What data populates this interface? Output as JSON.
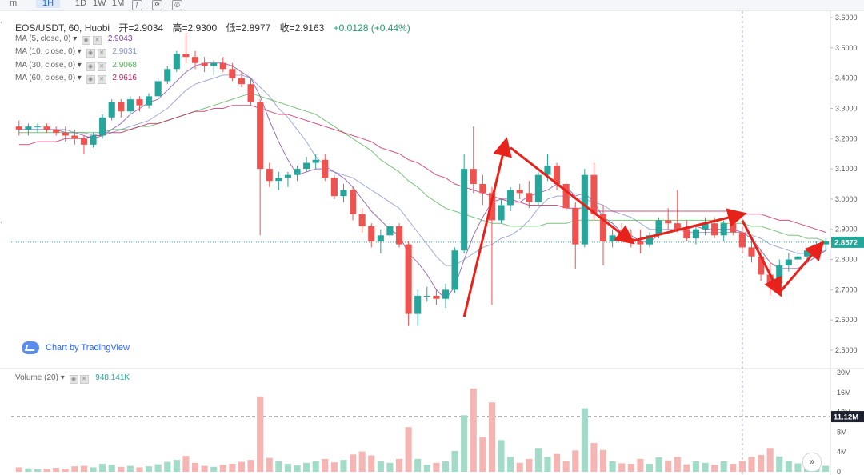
{
  "toolbar": {
    "items": [
      "m",
      "1H",
      "1D",
      "1W",
      "1M"
    ],
    "active": "1H"
  },
  "legend": {
    "symbol": "EOS/USDT, 60, Huobi",
    "open": "开=2.9034",
    "high": "高=2.9300",
    "low": "低=2.8977",
    "close": "收=2.9163",
    "change": "+0.0128 (+0.44%)",
    "mas": [
      {
        "label": "MA (5, close, 0)",
        "value": "2.9043",
        "color": "#7b3fa3"
      },
      {
        "label": "MA (10, close, 0)",
        "value": "2.9031",
        "color": "#7f8fc9"
      },
      {
        "label": "MA (30, close, 0)",
        "value": "2.9068",
        "color": "#4caf50"
      },
      {
        "label": "MA (60, close, 0)",
        "value": "2.9616",
        "color": "#c2185b"
      }
    ]
  },
  "watermark": "Chart by TradingView",
  "volume_legend": {
    "label": "Volume (20)",
    "value": "948.141K"
  },
  "price_axis_labels": [
    "3.6000",
    "3.5000",
    "3.4000",
    "3.3000",
    "3.2000",
    "3.1000",
    "3.0000",
    "2.9000",
    "2.8000",
    "2.7000",
    "2.6000",
    "2.5000"
  ],
  "volume_axis_labels": [
    "20M",
    "16M",
    "12M",
    "8M",
    "4M",
    "0"
  ],
  "current_price_tag": "2.8572",
  "volume_line_tag": "11.12M",
  "colors": {
    "up": "#26a69a",
    "down": "#ef5350",
    "up_vol": "#a3dbc9",
    "down_vol": "#f5b5b3",
    "arrow": "#e8221a"
  },
  "chart_data": {
    "type": "candlestick",
    "title": "EOS/USDT, 60, Huobi",
    "price_range": [
      2.47,
      3.62
    ],
    "volume_range": [
      0,
      20000000
    ],
    "current_price": 2.8572,
    "volume_marker": 11120000,
    "candles": [
      [
        3.24,
        3.26,
        3.21,
        3.23
      ],
      [
        3.23,
        3.25,
        3.21,
        3.24
      ],
      [
        3.24,
        3.25,
        3.22,
        3.24
      ],
      [
        3.24,
        3.25,
        3.22,
        3.23
      ],
      [
        3.23,
        3.24,
        3.21,
        3.22
      ],
      [
        3.22,
        3.24,
        3.19,
        3.21
      ],
      [
        3.21,
        3.23,
        3.18,
        3.2
      ],
      [
        3.2,
        3.21,
        3.15,
        3.18
      ],
      [
        3.18,
        3.22,
        3.17,
        3.21
      ],
      [
        3.21,
        3.28,
        3.2,
        3.27
      ],
      [
        3.27,
        3.33,
        3.26,
        3.32
      ],
      [
        3.32,
        3.33,
        3.27,
        3.29
      ],
      [
        3.29,
        3.34,
        3.28,
        3.33
      ],
      [
        3.33,
        3.34,
        3.29,
        3.31
      ],
      [
        3.31,
        3.35,
        3.3,
        3.34
      ],
      [
        3.34,
        3.4,
        3.33,
        3.39
      ],
      [
        3.39,
        3.44,
        3.38,
        3.43
      ],
      [
        3.43,
        3.49,
        3.42,
        3.48
      ],
      [
        3.48,
        3.55,
        3.45,
        3.47
      ],
      [
        3.47,
        3.49,
        3.43,
        3.45
      ],
      [
        3.45,
        3.47,
        3.42,
        3.44
      ],
      [
        3.44,
        3.46,
        3.41,
        3.45
      ],
      [
        3.45,
        3.47,
        3.42,
        3.43
      ],
      [
        3.43,
        3.45,
        3.39,
        3.4
      ],
      [
        3.4,
        3.42,
        3.37,
        3.38
      ],
      [
        3.38,
        3.4,
        3.31,
        3.32
      ],
      [
        3.32,
        3.33,
        2.88,
        3.1
      ],
      [
        3.1,
        3.12,
        3.04,
        3.06
      ],
      [
        3.06,
        3.09,
        3.03,
        3.07
      ],
      [
        3.07,
        3.09,
        3.04,
        3.08
      ],
      [
        3.08,
        3.11,
        3.06,
        3.1
      ],
      [
        3.1,
        3.14,
        3.09,
        3.12
      ],
      [
        3.12,
        3.15,
        3.1,
        3.13
      ],
      [
        3.13,
        3.15,
        3.06,
        3.07
      ],
      [
        3.07,
        3.08,
        3.0,
        3.01
      ],
      [
        3.01,
        3.05,
        2.99,
        3.03
      ],
      [
        3.03,
        3.04,
        2.93,
        2.95
      ],
      [
        2.95,
        2.97,
        2.89,
        2.91
      ],
      [
        2.91,
        2.92,
        2.84,
        2.86
      ],
      [
        2.86,
        2.9,
        2.82,
        2.88
      ],
      [
        2.88,
        2.92,
        2.86,
        2.91
      ],
      [
        2.91,
        2.92,
        2.84,
        2.85
      ],
      [
        2.85,
        2.86,
        2.58,
        2.62
      ],
      [
        2.62,
        2.7,
        2.58,
        2.68
      ],
      [
        2.68,
        2.71,
        2.66,
        2.68
      ],
      [
        2.68,
        2.7,
        2.65,
        2.67
      ],
      [
        2.67,
        2.72,
        2.64,
        2.7
      ],
      [
        2.7,
        2.84,
        2.69,
        2.83
      ],
      [
        2.83,
        3.15,
        2.82,
        3.1
      ],
      [
        3.1,
        3.24,
        3.02,
        3.05
      ],
      [
        3.05,
        3.08,
        2.98,
        3.02
      ],
      [
        3.02,
        3.04,
        2.65,
        2.93
      ],
      [
        2.93,
        3.0,
        2.92,
        2.98
      ],
      [
        2.98,
        3.04,
        2.96,
        3.03
      ],
      [
        3.03,
        3.05,
        3.0,
        3.02
      ],
      [
        3.02,
        3.06,
        2.97,
        2.99
      ],
      [
        2.99,
        3.09,
        2.98,
        3.08
      ],
      [
        3.08,
        3.15,
        3.06,
        3.11
      ],
      [
        3.11,
        3.12,
        3.03,
        3.05
      ],
      [
        3.05,
        3.06,
        2.96,
        2.97
      ],
      [
        2.97,
        2.99,
        2.77,
        2.85
      ],
      [
        2.85,
        3.1,
        2.84,
        3.08
      ],
      [
        3.08,
        3.12,
        2.93,
        2.95
      ],
      [
        2.95,
        2.98,
        2.78,
        2.86
      ],
      [
        2.86,
        2.9,
        2.84,
        2.88
      ],
      [
        2.88,
        2.92,
        2.86,
        2.87
      ],
      [
        2.87,
        2.9,
        2.84,
        2.86
      ],
      [
        2.86,
        2.9,
        2.82,
        2.85
      ],
      [
        2.85,
        2.89,
        2.84,
        2.88
      ],
      [
        2.88,
        2.94,
        2.87,
        2.93
      ],
      [
        2.93,
        2.97,
        2.9,
        2.92
      ],
      [
        2.92,
        3.03,
        2.89,
        2.9
      ],
      [
        2.9,
        2.93,
        2.86,
        2.87
      ],
      [
        2.87,
        2.91,
        2.85,
        2.9
      ],
      [
        2.9,
        2.94,
        2.88,
        2.92
      ],
      [
        2.92,
        2.94,
        2.87,
        2.88
      ],
      [
        2.88,
        2.93,
        2.86,
        2.92
      ],
      [
        2.92,
        2.95,
        2.88,
        2.89
      ],
      [
        2.89,
        2.91,
        2.82,
        2.84
      ],
      [
        2.84,
        2.86,
        2.79,
        2.81
      ],
      [
        2.81,
        2.83,
        2.73,
        2.75
      ],
      [
        2.75,
        2.79,
        2.68,
        2.72
      ],
      [
        2.72,
        2.8,
        2.71,
        2.78
      ],
      [
        2.78,
        2.82,
        2.76,
        2.8
      ],
      [
        2.8,
        2.83,
        2.78,
        2.81
      ],
      [
        2.81,
        2.84,
        2.8,
        2.83
      ],
      [
        2.83,
        2.86,
        2.82,
        2.85
      ],
      [
        2.85,
        2.87,
        2.83,
        2.86
      ]
    ],
    "volumes_m": [
      0.9,
      0.7,
      0.5,
      0.6,
      0.8,
      0.6,
      1.1,
      1.2,
      0.9,
      1.6,
      1.4,
      1.0,
      1.2,
      0.9,
      1.1,
      1.5,
      2.0,
      2.4,
      3.2,
      1.8,
      1.2,
      1.0,
      1.4,
      1.6,
      2.0,
      2.4,
      15.2,
      2.8,
      2.1,
      1.6,
      1.3,
      1.8,
      2.2,
      2.6,
      1.9,
      2.4,
      3.5,
      4.1,
      3.3,
      2.1,
      1.8,
      2.6,
      9.0,
      2.6,
      1.4,
      1.8,
      2.1,
      4.2,
      11.4,
      16.8,
      7.0,
      14.0,
      6.4,
      3.0,
      1.8,
      2.6,
      4.8,
      3.0,
      3.6,
      2.2,
      4.3,
      12.8,
      5.8,
      4.4,
      2.1,
      1.7,
      1.6,
      2.6,
      1.6,
      2.9,
      2.3,
      3.0,
      1.5,
      2.1,
      1.8,
      1.4,
      2.1,
      1.6,
      2.2,
      3.0,
      3.4,
      4.8,
      3.1,
      2.2,
      1.7,
      1.4,
      1.3,
      1.2
    ],
    "ma_series": [
      {
        "name": "MA (5, close, 0)",
        "color": "#7b3fa3",
        "values": [
          3.23,
          3.23,
          3.23,
          3.23,
          3.23,
          3.22,
          3.22,
          3.21,
          3.2,
          3.21,
          3.23,
          3.25,
          3.28,
          3.3,
          3.32,
          3.33,
          3.36,
          3.39,
          3.42,
          3.44,
          3.45,
          3.45,
          3.45,
          3.44,
          3.42,
          3.4,
          3.34,
          3.26,
          3.19,
          3.13,
          3.08,
          3.09,
          3.1,
          3.1,
          3.09,
          3.07,
          3.04,
          3.0,
          2.96,
          2.93,
          2.9,
          2.88,
          2.82,
          2.79,
          2.75,
          2.7,
          2.67,
          2.71,
          2.8,
          2.88,
          2.94,
          2.99,
          3.0,
          3.0,
          2.99,
          3.01,
          3.02,
          3.03,
          3.05,
          3.04,
          3.01,
          3.02,
          2.99,
          2.94,
          2.92,
          2.89,
          2.88,
          2.86,
          2.86,
          2.88,
          2.89,
          2.9,
          2.9,
          2.91,
          2.9,
          2.9,
          2.9,
          2.9,
          2.89,
          2.87,
          2.83,
          2.79,
          2.77,
          2.77,
          2.77,
          2.79,
          2.81,
          2.83
        ]
      },
      {
        "name": "MA (10, close, 0)",
        "color": "#7f8fc9",
        "values": [
          3.23,
          3.23,
          3.23,
          3.23,
          3.23,
          3.23,
          3.22,
          3.22,
          3.21,
          3.22,
          3.22,
          3.23,
          3.24,
          3.25,
          3.26,
          3.28,
          3.3,
          3.33,
          3.36,
          3.38,
          3.39,
          3.4,
          3.41,
          3.41,
          3.41,
          3.4,
          3.37,
          3.34,
          3.3,
          3.27,
          3.23,
          3.19,
          3.14,
          3.11,
          3.09,
          3.08,
          3.07,
          3.05,
          3.03,
          3.01,
          2.99,
          2.97,
          2.93,
          2.89,
          2.85,
          2.81,
          2.78,
          2.78,
          2.8,
          2.82,
          2.84,
          2.85,
          2.87,
          2.88,
          2.9,
          2.93,
          2.97,
          3.0,
          3.01,
          3.01,
          3.0,
          3.0,
          2.99,
          2.98,
          2.96,
          2.95,
          2.94,
          2.92,
          2.9,
          2.9,
          2.9,
          2.9,
          2.89,
          2.89,
          2.89,
          2.89,
          2.89,
          2.89,
          2.89,
          2.88,
          2.87,
          2.85,
          2.84,
          2.83,
          2.82,
          2.82,
          2.82,
          2.83
        ]
      },
      {
        "name": "MA (30, close, 0)",
        "color": "#4caf50",
        "values": [
          3.22,
          3.22,
          3.22,
          3.22,
          3.22,
          3.22,
          3.22,
          3.22,
          3.22,
          3.22,
          3.23,
          3.23,
          3.23,
          3.24,
          3.24,
          3.25,
          3.26,
          3.27,
          3.28,
          3.29,
          3.3,
          3.31,
          3.32,
          3.33,
          3.34,
          3.35,
          3.34,
          3.33,
          3.32,
          3.31,
          3.3,
          3.29,
          3.28,
          3.26,
          3.24,
          3.22,
          3.2,
          3.18,
          3.16,
          3.13,
          3.11,
          3.09,
          3.06,
          3.04,
          3.01,
          2.99,
          2.97,
          2.96,
          2.95,
          2.94,
          2.93,
          2.92,
          2.92,
          2.91,
          2.91,
          2.91,
          2.91,
          2.92,
          2.92,
          2.92,
          2.93,
          2.93,
          2.93,
          2.93,
          2.93,
          2.93,
          2.93,
          2.93,
          2.93,
          2.93,
          2.93,
          2.93,
          2.93,
          2.93,
          2.93,
          2.93,
          2.92,
          2.92,
          2.92,
          2.91,
          2.91,
          2.9,
          2.89,
          2.88,
          2.88,
          2.87,
          2.87,
          2.86
        ]
      },
      {
        "name": "MA (60, close, 0)",
        "color": "#c2185b",
        "values": [
          3.18,
          3.18,
          3.19,
          3.19,
          3.19,
          3.2,
          3.2,
          3.2,
          3.21,
          3.21,
          3.22,
          3.22,
          3.23,
          3.24,
          3.25,
          3.25,
          3.26,
          3.27,
          3.28,
          3.29,
          3.29,
          3.3,
          3.3,
          3.31,
          3.31,
          3.31,
          3.3,
          3.29,
          3.28,
          3.28,
          3.27,
          3.26,
          3.25,
          3.24,
          3.23,
          3.22,
          3.21,
          3.2,
          3.19,
          3.17,
          3.16,
          3.15,
          3.13,
          3.12,
          3.1,
          3.08,
          3.07,
          3.05,
          3.04,
          3.03,
          3.02,
          3.01,
          3.0,
          2.99,
          2.99,
          2.98,
          2.98,
          2.98,
          2.98,
          2.97,
          2.97,
          2.97,
          2.96,
          2.96,
          2.96,
          2.96,
          2.96,
          2.96,
          2.96,
          2.96,
          2.96,
          2.96,
          2.96,
          2.96,
          2.96,
          2.96,
          2.96,
          2.96,
          2.95,
          2.95,
          2.95,
          2.94,
          2.93,
          2.93,
          2.92,
          2.91,
          2.9,
          2.89
        ]
      }
    ],
    "annotations": [
      {
        "type": "arrow",
        "points": [
          [
            48,
            2.61
          ],
          [
            52.5,
            3.19
          ]
        ]
      },
      {
        "type": "arrow",
        "points": [
          [
            53,
            3.17
          ],
          [
            66,
            2.86
          ]
        ]
      },
      {
        "type": "arrow",
        "points": [
          [
            66,
            2.86
          ],
          [
            78,
            2.95
          ]
        ]
      },
      {
        "type": "arrow",
        "points": [
          [
            78,
            2.93
          ],
          [
            82,
            2.69
          ]
        ]
      },
      {
        "type": "arrow",
        "points": [
          [
            82,
            2.69
          ],
          [
            86.5,
            2.85
          ]
        ]
      }
    ]
  }
}
